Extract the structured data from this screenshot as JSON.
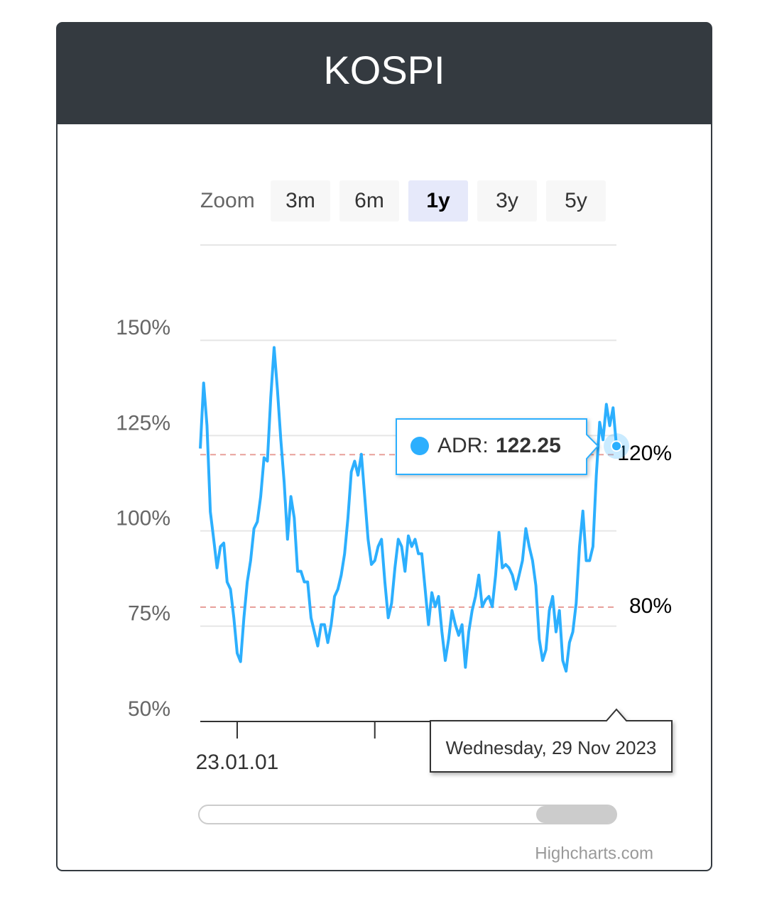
{
  "chart_data": {
    "type": "line",
    "title": "KOSPI",
    "zoom": {
      "label": "Zoom",
      "buttons": [
        "3m",
        "6m",
        "1y",
        "3y",
        "5y"
      ],
      "selected": 2
    },
    "series": [
      {
        "color": "#2caffe",
        "values": [
          121.6,
          138.8,
          127.6,
          105,
          97.8,
          90.3,
          95.9,
          96.8,
          86.6,
          84.7,
          77.2,
          67.9,
          65.7,
          77.2,
          86.6,
          92.2,
          100.6,
          102.4,
          109,
          119.2,
          118.3,
          135,
          148.1,
          136.9,
          123.9,
          112.7,
          97.8,
          109,
          103.4,
          89.4,
          89.4,
          86.6,
          86.6,
          77.2,
          73.5,
          69.8,
          75.4,
          75.4,
          70.7,
          75.4,
          82.8,
          84.7,
          88.4,
          94,
          103.4,
          115.5,
          118.3,
          114.6,
          120.1,
          109,
          97.8,
          91.2,
          92.2,
          95.9,
          97.8,
          86.6,
          77.2,
          81,
          90.3,
          97.8,
          95.9,
          89.4,
          98.7,
          95.9,
          97.8,
          94,
          94,
          84.7,
          75.4,
          83.8,
          80.1,
          82.8,
          73.5,
          66,
          71.6,
          79.1,
          75.4,
          72.6,
          75.4,
          64.2,
          73.5,
          79.1,
          82.8,
          88.4,
          80.1,
          81.9,
          82.8,
          80.1,
          88.4,
          99.6,
          90.3,
          91.2,
          90.3,
          88.4,
          84.7,
          88.4,
          92.2,
          100.6,
          95.9,
          92.2,
          85.6,
          71.6,
          66,
          68.8,
          79.1,
          82.8,
          73.5,
          79.1,
          66,
          63.2,
          70.7,
          73.5,
          81,
          95.9,
          105.2,
          92.2,
          92.2,
          95.9,
          114.6,
          128.5,
          123.9,
          133.2,
          127.6,
          132.3,
          122.25
        ]
      }
    ],
    "xlim": [
      0,
      124
    ],
    "xticks": [
      {
        "value": 11,
        "label": "23.01.01"
      },
      {
        "value": 52
      }
    ],
    "ylim": [
      50,
      175
    ],
    "yticks": [
      {
        "value": 50,
        "label": "50%"
      },
      {
        "value": 75,
        "label": "75%"
      },
      {
        "value": 100,
        "label": "100%"
      },
      {
        "value": 125,
        "label": "125%"
      },
      {
        "value": 150,
        "label": "150%"
      }
    ],
    "grid": true,
    "plot_lines": [
      {
        "value": 120,
        "label": "120%",
        "color": "#e8a09a"
      },
      {
        "value": 80,
        "label": "80%",
        "color": "#e8a09a"
      }
    ],
    "tooltip": {
      "label": "ADR:",
      "point": 124,
      "date": "Wednesday, 29 Nov 2023"
    },
    "credits": "Highcharts.com"
  }
}
